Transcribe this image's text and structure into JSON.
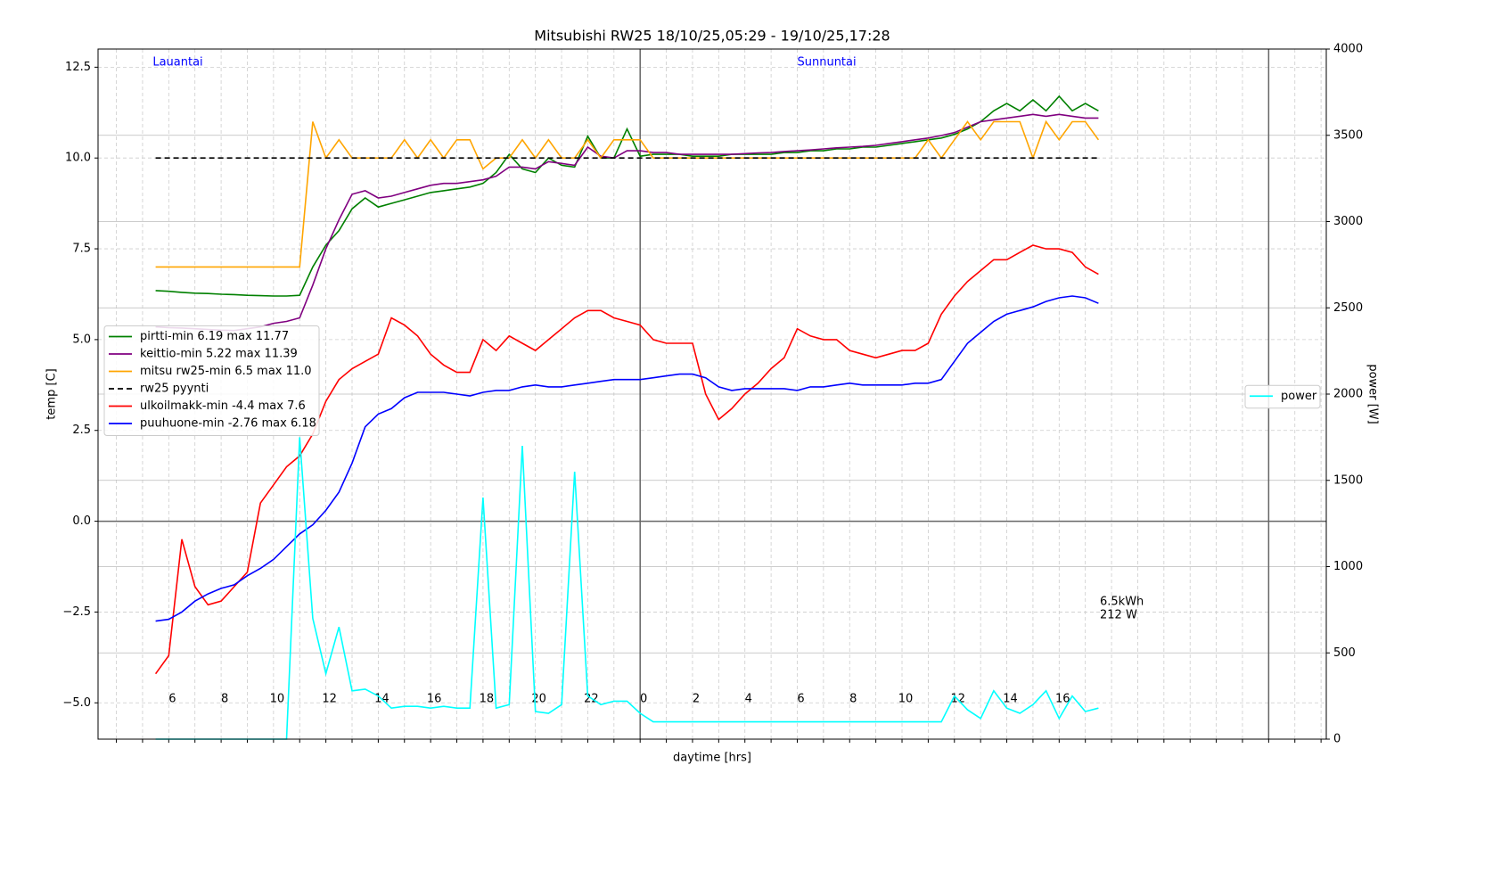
{
  "chart_data": {
    "type": "line",
    "title": "Mitsubishi RW25 18/10/25,05:29 - 19/10/25,17:28",
    "xlabel": "daytime [hrs]",
    "ylabel": "temp [C]",
    "y2label": "power [W]",
    "day_labels": [
      "Lauantai",
      "Sunnuntai"
    ],
    "day_label_color": "blue",
    "annotations": [
      "6.5kWh",
      "212 W"
    ],
    "xlim": [
      3.3,
      50.2
    ],
    "ylim": [
      -6,
      13
    ],
    "y2lim": [
      0,
      4000
    ],
    "xticks": [
      6,
      8,
      10,
      12,
      14,
      16,
      18,
      20,
      22,
      {
        "value": 24,
        "label": "0"
      },
      {
        "value": 26,
        "label": "2"
      },
      {
        "value": 28,
        "label": "4"
      },
      {
        "value": 30,
        "label": "6"
      },
      {
        "value": 32,
        "label": "8"
      },
      {
        "value": 34,
        "label": "10"
      },
      {
        "value": 36,
        "label": "12"
      },
      {
        "value": 38,
        "label": "14"
      },
      {
        "value": 40,
        "label": "16"
      }
    ],
    "xminorticks": [
      4,
      5,
      6,
      7,
      8,
      9,
      10,
      11,
      12,
      13,
      14,
      15,
      16,
      17,
      18,
      19,
      20,
      21,
      22,
      23,
      24,
      25,
      26,
      27,
      28,
      29,
      30,
      31,
      32,
      33,
      34,
      35,
      36,
      37,
      38,
      39,
      40,
      41,
      42,
      43,
      44,
      45,
      46,
      47,
      48,
      49,
      50
    ],
    "day_lines": [
      24,
      48
    ],
    "yticks": [
      {
        "value": -5,
        "label": "−5.0"
      },
      {
        "value": -2.5,
        "label": "−2.5"
      },
      {
        "value": 0,
        "label": "0.0"
      },
      {
        "value": 2.5,
        "label": "2.5"
      },
      {
        "value": 5,
        "label": "5.0"
      },
      {
        "value": 7.5,
        "label": "7.5"
      },
      {
        "value": 10,
        "label": "10.0"
      },
      {
        "value": 12.5,
        "label": "12.5"
      }
    ],
    "y2ticks": [
      0,
      500,
      1000,
      1500,
      2000,
      2500,
      3000,
      3500,
      4000
    ],
    "grid": true,
    "zero_line": true,
    "legend_loc": "center left",
    "legend2_loc": "center right",
    "x": [
      5.5,
      6,
      6.5,
      7,
      7.5,
      8,
      8.5,
      9,
      9.5,
      10,
      10.5,
      11,
      11.5,
      12,
      12.5,
      13,
      13.5,
      14,
      14.5,
      15,
      15.5,
      16,
      16.5,
      17,
      17.5,
      18,
      18.5,
      19,
      19.5,
      20,
      20.5,
      21,
      21.5,
      22,
      22.5,
      23,
      23.5,
      24,
      24.5,
      25,
      25.5,
      26,
      26.5,
      27,
      27.5,
      28,
      28.5,
      29,
      29.5,
      30,
      30.5,
      31,
      31.5,
      32,
      32.5,
      33,
      33.5,
      34,
      34.5,
      35,
      35.5,
      36,
      36.5,
      37,
      37.5,
      38,
      38.5,
      39,
      39.5,
      40,
      40.5,
      41,
      41.5
    ],
    "series": [
      {
        "name": "pirtti-min 6.19 max 11.77",
        "color": "green",
        "values": [
          6.35,
          6.33,
          6.3,
          6.28,
          6.27,
          6.25,
          6.24,
          6.22,
          6.21,
          6.2,
          6.2,
          6.22,
          7.0,
          7.6,
          8.0,
          8.6,
          8.9,
          8.65,
          8.75,
          8.85,
          8.95,
          9.05,
          9.1,
          9.15,
          9.2,
          9.3,
          9.6,
          10.1,
          9.7,
          9.6,
          10.0,
          9.8,
          9.75,
          10.6,
          10.0,
          10.0,
          10.8,
          10.05,
          10.1,
          10.1,
          10.1,
          10.05,
          10.05,
          10.05,
          10.1,
          10.1,
          10.1,
          10.1,
          10.15,
          10.15,
          10.2,
          10.2,
          10.25,
          10.25,
          10.3,
          10.3,
          10.35,
          10.4,
          10.45,
          10.5,
          10.55,
          10.65,
          10.8,
          11.0,
          11.3,
          11.5,
          11.3,
          11.6,
          11.3,
          11.7,
          11.3,
          11.5,
          11.3
        ]
      },
      {
        "name": "keittio-min 5.22 max 11.39",
        "color": "purple",
        "values": [
          5.35,
          5.33,
          5.32,
          5.3,
          5.28,
          5.26,
          5.25,
          5.3,
          5.35,
          5.45,
          5.5,
          5.6,
          6.5,
          7.5,
          8.3,
          9.0,
          9.1,
          8.9,
          8.95,
          9.05,
          9.15,
          9.25,
          9.3,
          9.3,
          9.35,
          9.4,
          9.5,
          9.75,
          9.75,
          9.7,
          9.9,
          9.85,
          9.8,
          10.3,
          10.05,
          10.0,
          10.2,
          10.2,
          10.15,
          10.15,
          10.1,
          10.1,
          10.1,
          10.1,
          10.1,
          10.12,
          10.14,
          10.15,
          10.18,
          10.2,
          10.22,
          10.25,
          10.28,
          10.3,
          10.32,
          10.35,
          10.4,
          10.45,
          10.5,
          10.55,
          10.62,
          10.7,
          10.85,
          11.0,
          11.05,
          11.1,
          11.15,
          11.2,
          11.15,
          11.2,
          11.15,
          11.1,
          11.1
        ]
      },
      {
        "name": "mitsu rw25-min 6.5 max 11.0",
        "color": "orange",
        "values": [
          7,
          7,
          7,
          7,
          7,
          7,
          7,
          7,
          7,
          7,
          7,
          7,
          11,
          10,
          10.5,
          10,
          10,
          10,
          10,
          10.5,
          10,
          10.5,
          10,
          10.5,
          10.5,
          9.7,
          10,
          10,
          10.5,
          10,
          10.5,
          10,
          10,
          10.5,
          10,
          10.5,
          10.5,
          10.5,
          10,
          10,
          10,
          10,
          10,
          10,
          10,
          10,
          10,
          10,
          10,
          10,
          10,
          10,
          10,
          10,
          10,
          10,
          10,
          10,
          10,
          10.5,
          10,
          10.5,
          11,
          10.5,
          11,
          11,
          11,
          10,
          11,
          10.5,
          11,
          11,
          10.5
        ]
      },
      {
        "name": "rw25 pyynti",
        "color": "black",
        "dashed": true,
        "values": [
          10,
          10,
          10,
          10,
          10,
          10,
          10,
          10,
          10,
          10,
          10,
          10,
          10,
          10,
          10,
          10,
          10,
          10,
          10,
          10,
          10,
          10,
          10,
          10,
          10,
          10,
          10,
          10,
          10,
          10,
          10,
          10,
          10,
          10,
          10,
          10,
          10,
          10,
          10,
          10,
          10,
          10,
          10,
          10,
          10,
          10,
          10,
          10,
          10,
          10,
          10,
          10,
          10,
          10,
          10,
          10,
          10,
          10,
          10,
          10,
          10,
          10,
          10,
          10,
          10,
          10,
          10,
          10,
          10,
          10,
          10,
          10,
          10
        ]
      },
      {
        "name": "ulkoilmakk-min -4.4 max 7.6",
        "color": "red",
        "values": [
          -4.2,
          -3.7,
          -0.5,
          -1.8,
          -2.3,
          -2.2,
          -1.8,
          -1.4,
          0.5,
          1.0,
          1.5,
          1.8,
          2.4,
          3.3,
          3.9,
          4.2,
          4.4,
          4.6,
          5.6,
          5.4,
          5.1,
          4.6,
          4.3,
          4.1,
          4.1,
          5.0,
          4.7,
          5.1,
          4.9,
          4.7,
          5.0,
          5.3,
          5.6,
          5.8,
          5.8,
          5.6,
          5.5,
          5.4,
          5.0,
          4.9,
          4.9,
          4.9,
          3.5,
          2.8,
          3.1,
          3.5,
          3.8,
          4.2,
          4.5,
          5.3,
          5.1,
          5.0,
          5.0,
          4.7,
          4.6,
          4.5,
          4.6,
          4.7,
          4.7,
          4.9,
          5.7,
          6.2,
          6.6,
          6.9,
          7.2,
          7.2,
          7.4,
          7.6,
          7.5,
          7.5,
          7.4,
          7.0,
          6.8
        ]
      },
      {
        "name": "puuhuone-min -2.76 max 6.18",
        "color": "blue",
        "values": [
          -2.75,
          -2.7,
          -2.5,
          -2.2,
          -2.0,
          -1.85,
          -1.75,
          -1.5,
          -1.3,
          -1.05,
          -0.7,
          -0.35,
          -0.1,
          0.3,
          0.8,
          1.6,
          2.6,
          2.95,
          3.1,
          3.4,
          3.55,
          3.55,
          3.55,
          3.5,
          3.45,
          3.55,
          3.6,
          3.6,
          3.7,
          3.75,
          3.7,
          3.7,
          3.75,
          3.8,
          3.85,
          3.9,
          3.9,
          3.9,
          3.95,
          4.0,
          4.05,
          4.05,
          3.95,
          3.7,
          3.6,
          3.65,
          3.65,
          3.65,
          3.65,
          3.6,
          3.7,
          3.7,
          3.75,
          3.8,
          3.75,
          3.75,
          3.75,
          3.75,
          3.8,
          3.8,
          3.9,
          4.4,
          4.9,
          5.2,
          5.5,
          5.7,
          5.8,
          5.9,
          6.05,
          6.15,
          6.2,
          6.15,
          6.0
        ]
      },
      {
        "name": "power",
        "color": "cyan",
        "axis": "y2",
        "values": [
          0,
          0,
          0,
          0,
          0,
          0,
          0,
          0,
          0,
          0,
          0,
          1750,
          700,
          380,
          650,
          280,
          290,
          250,
          180,
          190,
          190,
          180,
          190,
          180,
          180,
          1400,
          180,
          200,
          1700,
          160,
          150,
          200,
          1550,
          250,
          200,
          220,
          220,
          150,
          100,
          100,
          100,
          100,
          100,
          100,
          100,
          100,
          100,
          100,
          100,
          100,
          100,
          100,
          100,
          100,
          100,
          100,
          100,
          100,
          100,
          100,
          100,
          250,
          170,
          120,
          280,
          180,
          150,
          200,
          280,
          120,
          250,
          160,
          180
        ]
      }
    ]
  }
}
